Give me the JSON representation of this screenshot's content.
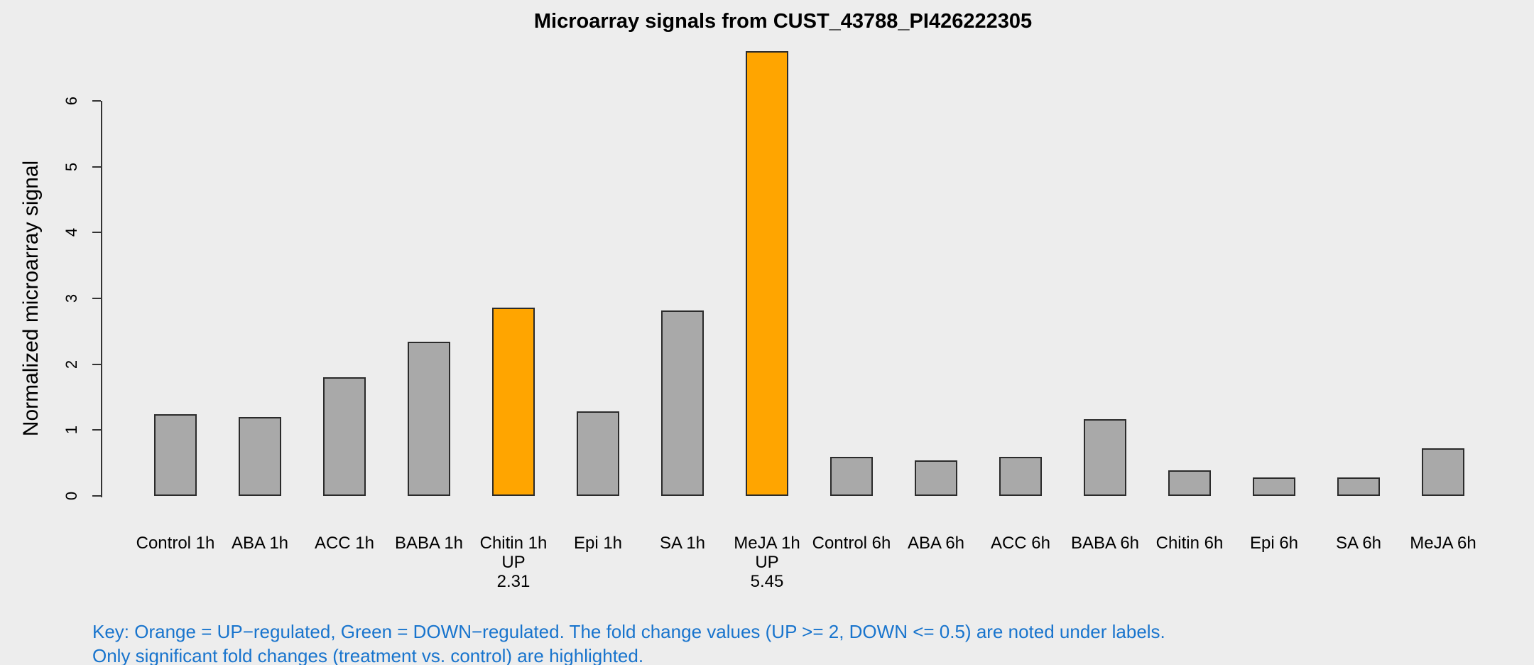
{
  "page": {
    "background": "#EDEDED"
  },
  "chart_data": {
    "type": "bar",
    "title": "Microarray signals from CUST_43788_PI426222305",
    "ylabel": "Normalized microarray signal",
    "xlabel": "",
    "ylim": [
      0,
      7
    ],
    "yticks": [
      0,
      1,
      2,
      3,
      4,
      5,
      6
    ],
    "grid": false,
    "legend_position": "none",
    "bars": [
      {
        "label": "Control 1h",
        "value": 1.24,
        "color": "gray"
      },
      {
        "label": "ABA 1h",
        "value": 1.2,
        "color": "gray"
      },
      {
        "label": "ACC 1h",
        "value": 1.8,
        "color": "gray"
      },
      {
        "label": "BABA 1h",
        "value": 2.34,
        "color": "gray"
      },
      {
        "label": "Chitin 1h",
        "value": 2.86,
        "color": "orange",
        "regulation": "UP",
        "fold_change": "2.31"
      },
      {
        "label": "Epi 1h",
        "value": 1.28,
        "color": "gray"
      },
      {
        "label": "SA 1h",
        "value": 2.82,
        "color": "gray"
      },
      {
        "label": "MeJA 1h",
        "value": 6.76,
        "color": "orange",
        "regulation": "UP",
        "fold_change": "5.45"
      },
      {
        "label": "Control 6h",
        "value": 0.59,
        "color": "gray"
      },
      {
        "label": "ABA 6h",
        "value": 0.54,
        "color": "gray"
      },
      {
        "label": "ACC 6h",
        "value": 0.59,
        "color": "gray"
      },
      {
        "label": "BABA 6h",
        "value": 1.17,
        "color": "gray"
      },
      {
        "label": "Chitin 6h",
        "value": 0.39,
        "color": "gray"
      },
      {
        "label": "Epi 6h",
        "value": 0.28,
        "color": "gray"
      },
      {
        "label": "SA 6h",
        "value": 0.28,
        "color": "gray"
      },
      {
        "label": "MeJA 6h",
        "value": 0.72,
        "color": "gray"
      }
    ],
    "colors": {
      "gray": "#A9A9A9",
      "orange": "#FFA500",
      "bar_border": "#2B2B2B",
      "axis": "#333333",
      "key_text": "#1874CD",
      "background": "#EDEDED",
      "text": "#000000"
    },
    "key_lines": [
      "Key: Orange = UP−regulated, Green = DOWN−regulated. The fold change values (UP >= 2, DOWN <= 0.5) are noted under labels.",
      "Only significant fold changes (treatment vs. control) are highlighted."
    ]
  }
}
